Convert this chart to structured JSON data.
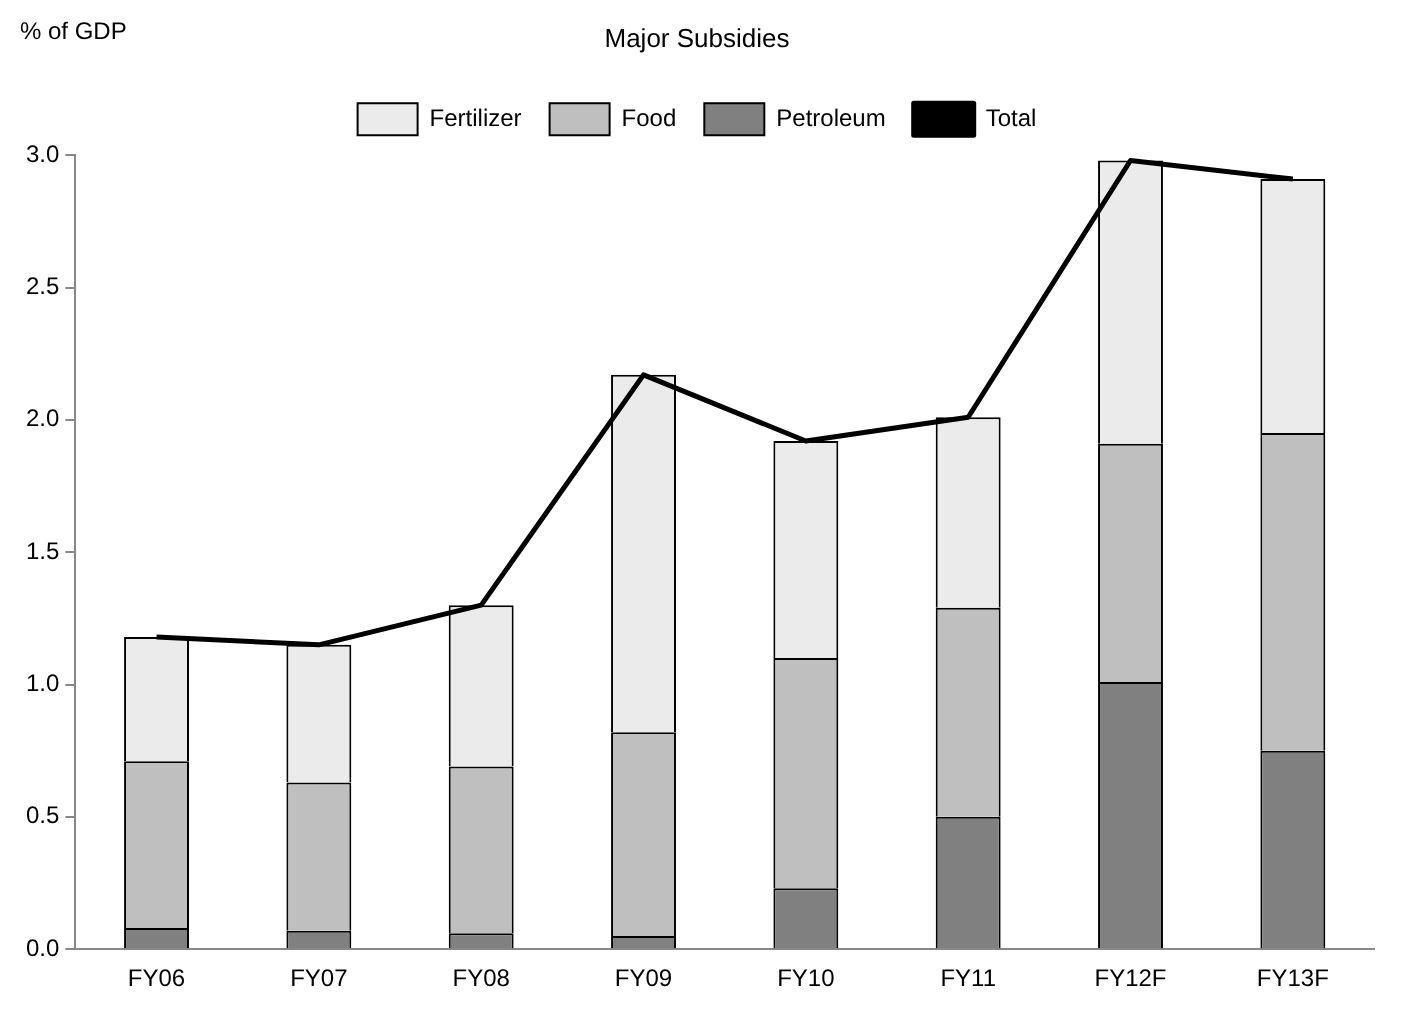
{
  "chart_data": {
    "type": "bar",
    "stacked": true,
    "title": "Major Subsidies",
    "ylabel": "% of GDP",
    "categories": [
      "FY06",
      "FY07",
      "FY08",
      "FY09",
      "FY10",
      "FY11",
      "FY12F",
      "FY13F"
    ],
    "series": [
      {
        "name": "Petroleum",
        "color": "#808080",
        "values": [
          0.08,
          0.07,
          0.06,
          0.05,
          0.23,
          0.5,
          1.01,
          0.75
        ]
      },
      {
        "name": "Food",
        "color": "#bfbfbf",
        "values": [
          0.63,
          0.56,
          0.63,
          0.77,
          0.87,
          0.79,
          0.9,
          1.2
        ]
      },
      {
        "name": "Fertilizer",
        "color": "#ebebeb",
        "values": [
          0.47,
          0.52,
          0.61,
          1.35,
          0.82,
          0.72,
          1.07,
          0.96
        ]
      },
      {
        "name": "Total",
        "type": "line",
        "color": "#000000",
        "values": [
          1.18,
          1.15,
          1.3,
          2.17,
          1.92,
          2.01,
          2.98,
          2.91
        ]
      }
    ],
    "ylim": [
      0,
      3
    ],
    "yticks": [
      {
        "value": 0,
        "label": "0.0"
      },
      {
        "value": 0.5,
        "label": "0.5"
      },
      {
        "value": 1,
        "label": "1.0"
      },
      {
        "value": 1.5,
        "label": "1.5"
      },
      {
        "value": 2,
        "label": "2.0"
      },
      {
        "value": 2.5,
        "label": "2.5"
      },
      {
        "value": 3,
        "label": "3.0"
      }
    ],
    "grid": false,
    "legend": "top",
    "marker": "none"
  }
}
